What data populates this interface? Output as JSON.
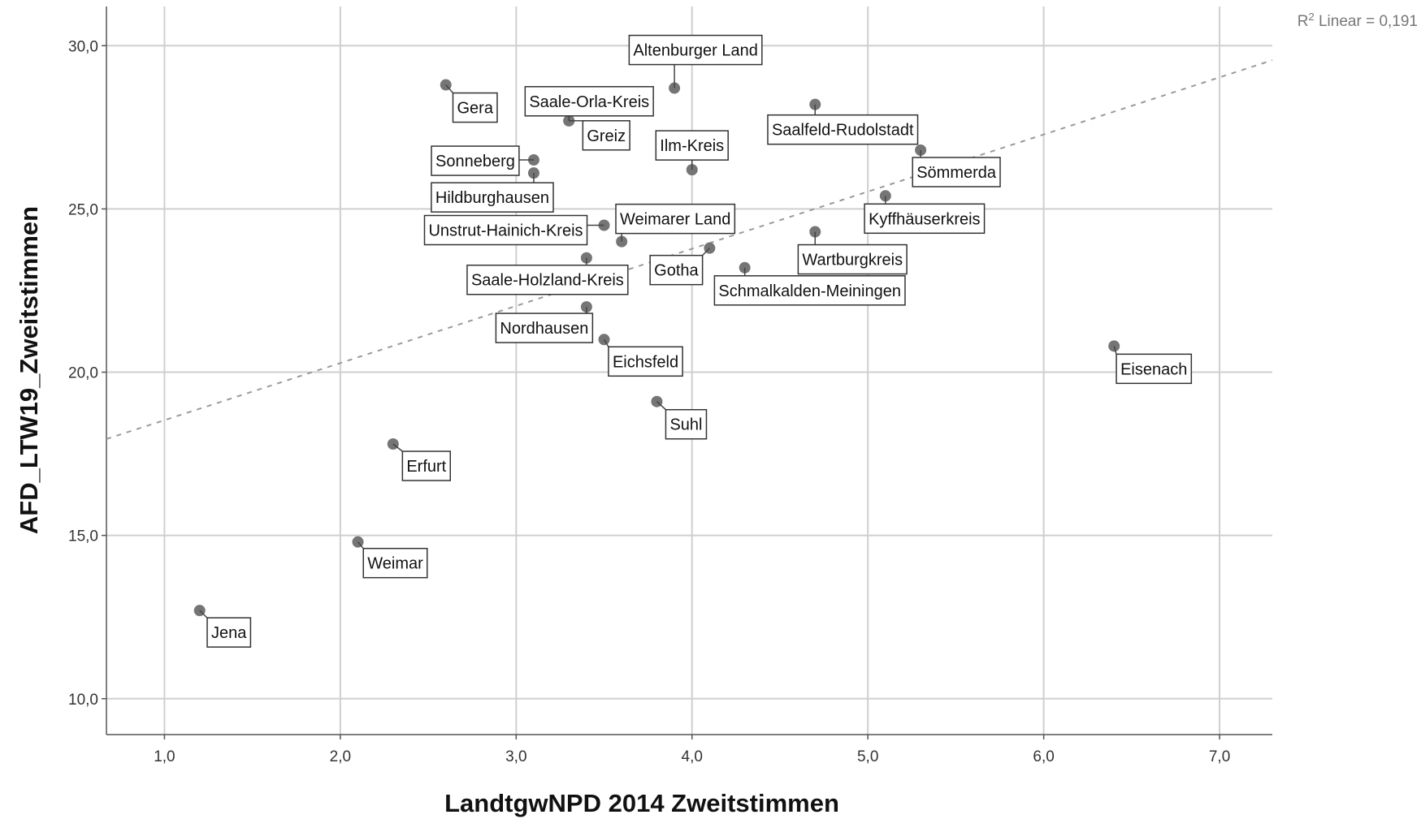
{
  "chart_data": {
    "type": "scatter",
    "title": "",
    "xlabel": "LandtgwNPD 2014 Zweitstimmen",
    "ylabel": "AFD_LTW19_Zweitstimmen",
    "xlim": [
      0.67,
      7.3
    ],
    "ylim": [
      8.9,
      31.2
    ],
    "x_ticks": [
      "1,0",
      "2,0",
      "3,0",
      "4,0",
      "5,0",
      "6,0",
      "7,0"
    ],
    "x_tick_values": [
      1,
      2,
      3,
      4,
      5,
      6,
      7
    ],
    "y_ticks": [
      "10,0",
      "15,0",
      "20,0",
      "25,0",
      "30,0"
    ],
    "y_tick_values": [
      10,
      15,
      20,
      25,
      30
    ],
    "grid": true,
    "fit_line": {
      "label": "Linear",
      "r2_value": "0,191",
      "intercept": 16.78,
      "slope": 1.75
    },
    "points": [
      {
        "name": "Altenburger Land",
        "x": 3.9,
        "y": 28.7
      },
      {
        "name": "Gera",
        "x": 2.6,
        "y": 28.8
      },
      {
        "name": "Saale-Orla-Kreis",
        "x": 3.3,
        "y": 27.7
      },
      {
        "name": "Greiz",
        "x": 3.3,
        "y": 27.7
      },
      {
        "name": "Ilm-Kreis",
        "x": 4.0,
        "y": 26.2
      },
      {
        "name": "Saalfeld-Rudolstadt",
        "x": 4.7,
        "y": 28.2
      },
      {
        "name": "Sömmerda",
        "x": 5.3,
        "y": 26.8
      },
      {
        "name": "Sonneberg",
        "x": 3.1,
        "y": 26.5
      },
      {
        "name": "Hildburghausen",
        "x": 3.1,
        "y": 26.1
      },
      {
        "name": "Unstrut-Hainich-Kreis",
        "x": 3.5,
        "y": 24.5
      },
      {
        "name": "Weimarer Land",
        "x": 3.6,
        "y": 24.0
      },
      {
        "name": "Kyffhäuserkreis",
        "x": 5.1,
        "y": 25.4
      },
      {
        "name": "Wartburgkreis",
        "x": 4.7,
        "y": 24.3
      },
      {
        "name": "Gotha",
        "x": 4.1,
        "y": 23.8
      },
      {
        "name": "Saale-Holzland-Kreis",
        "x": 3.4,
        "y": 23.5
      },
      {
        "name": "Schmalkalden-Meiningen",
        "x": 4.3,
        "y": 23.2
      },
      {
        "name": "Nordhausen",
        "x": 3.4,
        "y": 22.0
      },
      {
        "name": "Eichsfeld",
        "x": 3.5,
        "y": 21.0
      },
      {
        "name": "Eisenach",
        "x": 6.4,
        "y": 20.8
      },
      {
        "name": "Suhl",
        "x": 3.8,
        "y": 19.1
      },
      {
        "name": "Erfurt",
        "x": 2.3,
        "y": 17.8
      },
      {
        "name": "Weimar",
        "x": 2.1,
        "y": 14.8
      },
      {
        "name": "Jena",
        "x": 1.2,
        "y": 12.7
      }
    ]
  }
}
